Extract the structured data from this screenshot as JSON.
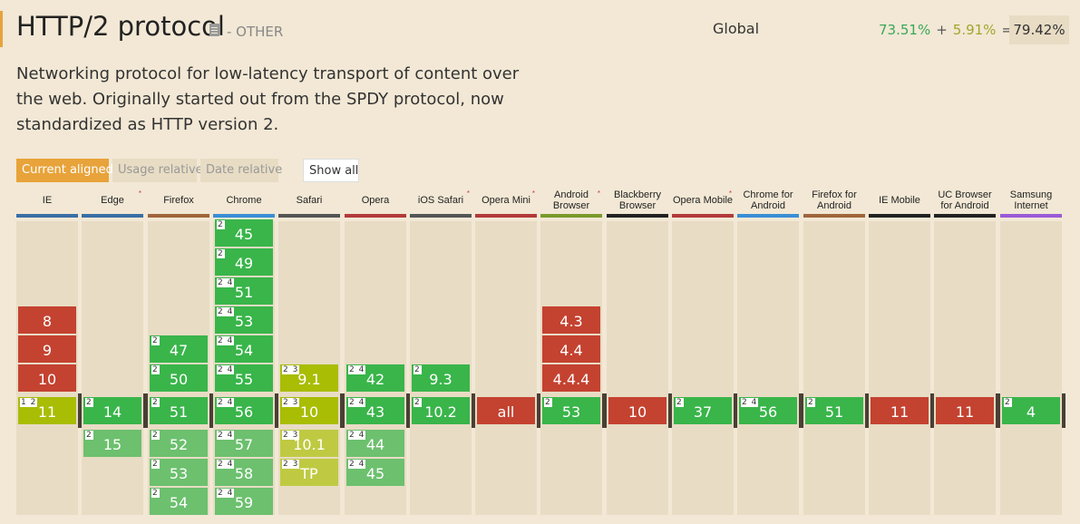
{
  "header": {
    "title": "HTTP/2 protocol",
    "category": "- OTHER",
    "global_label": "Global",
    "usage_full": "73.51%",
    "plus": "+",
    "usage_partial": "5.91%",
    "equals": "=",
    "usage_total": "79.42%"
  },
  "description": "Networking protocol for low-latency transport of content over the web. Originally started out from the SPDY protocol, now standardized as HTTP version 2.",
  "view_buttons": {
    "current_aligned": "Current aligned",
    "usage_relative": "Usage relative",
    "date_relative": "Date relative",
    "show_all": "Show all"
  },
  "colors": {
    "supported": "#39b54a",
    "not_supported": "#c44230",
    "partial": "#a8bd04",
    "accent": "#e8a33a"
  },
  "browsers": [
    {
      "name": "IE",
      "line_color": "#3a6ea5",
      "star": false,
      "cells": [
        {
          "v": "8",
          "s": "n",
          "r": -3
        },
        {
          "v": "9",
          "s": "n",
          "r": -2
        },
        {
          "v": "10",
          "s": "n",
          "r": -1
        },
        {
          "v": "11",
          "s": "a",
          "r": 0,
          "notes": "1 2"
        }
      ]
    },
    {
      "name": "Edge",
      "line_color": "#3a6ea5",
      "star": true,
      "cells": [
        {
          "v": "14",
          "s": "y",
          "r": 0,
          "notes": "2"
        },
        {
          "v": "15",
          "s": "yf",
          "r": 1,
          "notes": "2"
        }
      ]
    },
    {
      "name": "Firefox",
      "line_color": "#a0653b",
      "star": false,
      "cells": [
        {
          "v": "47",
          "s": "y",
          "r": -2,
          "notes": "2"
        },
        {
          "v": "50",
          "s": "y",
          "r": -1,
          "notes": "2"
        },
        {
          "v": "51",
          "s": "y",
          "r": 0,
          "notes": "2"
        },
        {
          "v": "52",
          "s": "yf",
          "r": 1,
          "notes": "2"
        },
        {
          "v": "53",
          "s": "yf",
          "r": 2,
          "notes": "2"
        },
        {
          "v": "54",
          "s": "yf",
          "r": 3,
          "notes": "2"
        }
      ]
    },
    {
      "name": "Chrome",
      "line_color": "#3a8ed6",
      "star": false,
      "cells": [
        {
          "v": "45",
          "s": "y",
          "r": -6,
          "notes": "2"
        },
        {
          "v": "49",
          "s": "y",
          "r": -5,
          "notes": "2"
        },
        {
          "v": "51",
          "s": "y",
          "r": -4,
          "notes": "2 4"
        },
        {
          "v": "53",
          "s": "y",
          "r": -3,
          "notes": "2 4"
        },
        {
          "v": "54",
          "s": "y",
          "r": -2,
          "notes": "2 4"
        },
        {
          "v": "55",
          "s": "y",
          "r": -1,
          "notes": "2 4"
        },
        {
          "v": "56",
          "s": "y",
          "r": 0,
          "notes": "2 4"
        },
        {
          "v": "57",
          "s": "yf",
          "r": 1,
          "notes": "2 4"
        },
        {
          "v": "58",
          "s": "yf",
          "r": 2,
          "notes": "2 4"
        },
        {
          "v": "59",
          "s": "yf",
          "r": 3,
          "notes": "2 4"
        }
      ]
    },
    {
      "name": "Safari",
      "line_color": "#555555",
      "star": false,
      "cells": [
        {
          "v": "9.1",
          "s": "a",
          "r": -1,
          "notes": "2 3"
        },
        {
          "v": "10",
          "s": "a",
          "r": 0,
          "notes": "2 3"
        },
        {
          "v": "10.1",
          "s": "af",
          "r": 1,
          "notes": "2 3"
        },
        {
          "v": "TP",
          "s": "af",
          "r": 2,
          "notes": "2 3"
        }
      ]
    },
    {
      "name": "Opera",
      "line_color": "#b23a3a",
      "star": false,
      "cells": [
        {
          "v": "42",
          "s": "y",
          "r": -1,
          "notes": "2 4"
        },
        {
          "v": "43",
          "s": "y",
          "r": 0,
          "notes": "2 4"
        },
        {
          "v": "44",
          "s": "yf",
          "r": 1,
          "notes": "2 4"
        },
        {
          "v": "45",
          "s": "yf",
          "r": 2,
          "notes": "2 4"
        }
      ]
    },
    {
      "name": "iOS Safari",
      "line_color": "#555555",
      "star": true,
      "cells": [
        {
          "v": "9.3",
          "s": "y",
          "r": -1,
          "notes": "2"
        },
        {
          "v": "10.2",
          "s": "y",
          "r": 0,
          "notes": "2"
        }
      ]
    },
    {
      "name": "Opera Mini",
      "line_color": "#b23a3a",
      "star": true,
      "cells": [
        {
          "v": "all",
          "s": "n",
          "r": 0
        }
      ]
    },
    {
      "name": "Android Browser",
      "line_color": "#7a9a2a",
      "star": true,
      "cells": [
        {
          "v": "4.3",
          "s": "n",
          "r": -3
        },
        {
          "v": "4.4",
          "s": "n",
          "r": -2
        },
        {
          "v": "4.4.4",
          "s": "n",
          "r": -1
        },
        {
          "v": "53",
          "s": "y",
          "r": 0,
          "notes": "2"
        }
      ]
    },
    {
      "name": "Blackberry Browser",
      "line_color": "#222222",
      "star": false,
      "cells": [
        {
          "v": "10",
          "s": "n",
          "r": 0
        }
      ]
    },
    {
      "name": "Opera Mobile",
      "line_color": "#b23a3a",
      "star": true,
      "cells": [
        {
          "v": "37",
          "s": "y",
          "r": 0,
          "notes": "2"
        }
      ]
    },
    {
      "name": "Chrome for Android",
      "line_color": "#3a8ed6",
      "star": false,
      "cells": [
        {
          "v": "56",
          "s": "y",
          "r": 0,
          "notes": "2 4"
        }
      ]
    },
    {
      "name": "Firefox for Android",
      "line_color": "#a0653b",
      "star": false,
      "cells": [
        {
          "v": "51",
          "s": "y",
          "r": 0,
          "notes": "2"
        }
      ]
    },
    {
      "name": "IE Mobile",
      "line_color": "#222222",
      "star": false,
      "cells": [
        {
          "v": "11",
          "s": "n",
          "r": 0
        }
      ]
    },
    {
      "name": "UC Browser for Android",
      "line_color": "#222222",
      "star": false,
      "cells": [
        {
          "v": "11",
          "s": "n",
          "r": 0
        }
      ]
    },
    {
      "name": "Samsung Internet",
      "line_color": "#9a5ad6",
      "star": false,
      "cells": [
        {
          "v": "4",
          "s": "y",
          "r": 0,
          "notes": "2"
        }
      ]
    }
  ]
}
